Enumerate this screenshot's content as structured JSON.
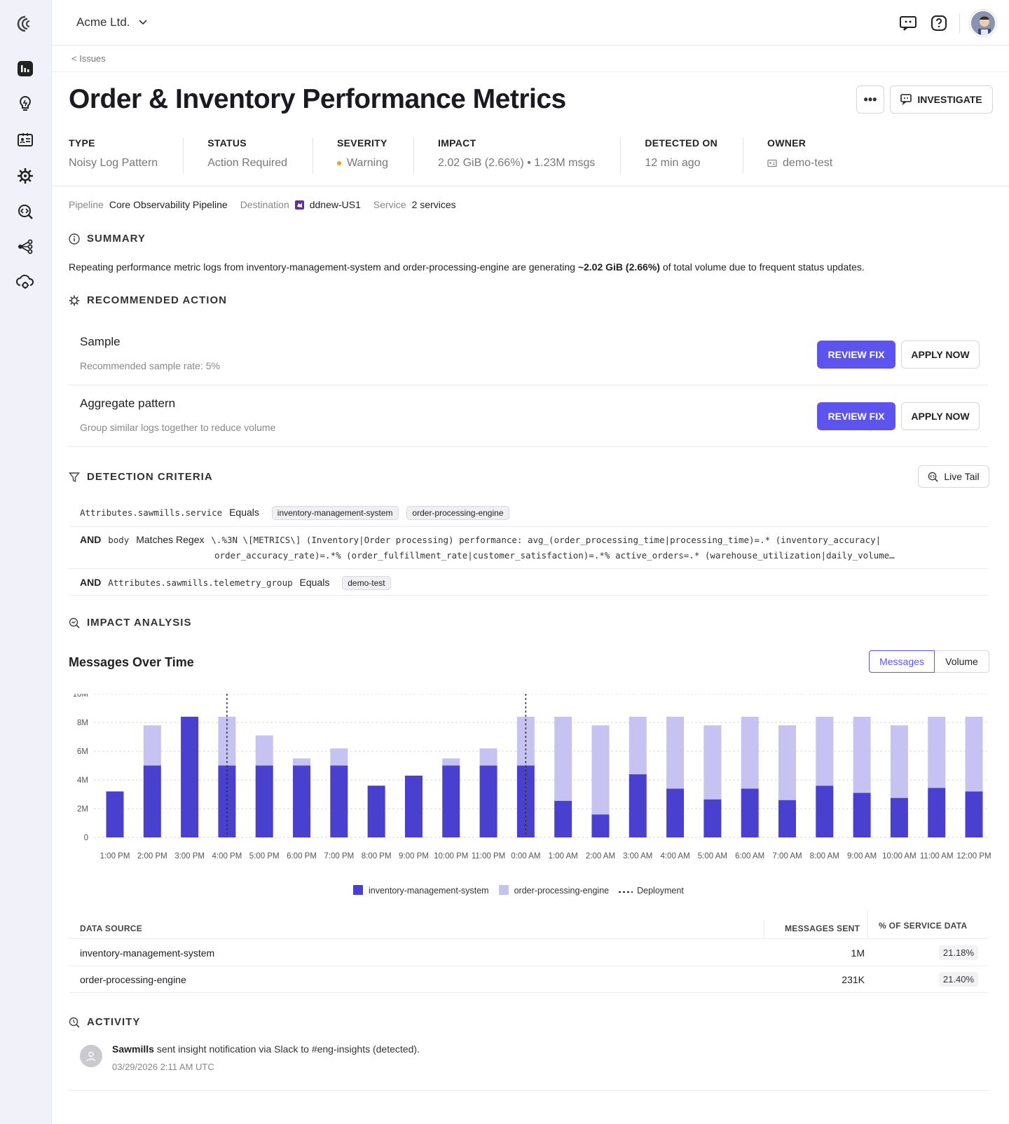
{
  "org": {
    "name": "Acme Ltd."
  },
  "breadcrumb": "< Issues",
  "title": "Order & Inventory Performance Metrics",
  "actions": {
    "investigate": "INVESTIGATE",
    "more": "•••"
  },
  "meta": [
    {
      "label": "TYPE",
      "value": "Noisy Log Pattern"
    },
    {
      "label": "STATUS",
      "value": "Action Required"
    },
    {
      "label": "SEVERITY",
      "value": "Warning"
    },
    {
      "label": "IMPACT",
      "value": "2.02 GiB (2.66%) • 1.23M msgs"
    },
    {
      "label": "DETECTED ON",
      "value": "12 min ago"
    },
    {
      "label": "OWNER",
      "value": "demo-test"
    }
  ],
  "pipeline": {
    "pipeline_label": "Pipeline",
    "pipeline_value": "Core Observability Pipeline",
    "destination_label": "Destination",
    "destination_value": "ddnew-US1",
    "service_label": "Service",
    "service_value": "2 services"
  },
  "summary": {
    "heading": "SUMMARY",
    "text_before": "Repeating performance metric logs from inventory-management-system and order-processing-engine are generating ",
    "text_bold": "~2.02 GiB (2.66%)",
    "text_after": " of total volume due to frequent status updates."
  },
  "recommended": {
    "heading": "RECOMMENDED ACTION",
    "items": [
      {
        "title": "Sample",
        "subtitle": "Recommended sample rate: 5%",
        "review": "REVIEW FIX",
        "apply": "APPLY NOW"
      },
      {
        "title": "Aggregate pattern",
        "subtitle": "Group similar logs together to reduce volume",
        "review": "REVIEW FIX",
        "apply": "APPLY NOW"
      }
    ]
  },
  "detection": {
    "heading": "DETECTION CRITERIA",
    "live_tail": "Live Tail",
    "row1": {
      "field": "Attributes.sawmills.service",
      "op": "Equals",
      "chips": [
        "inventory-management-system",
        "order-processing-engine"
      ]
    },
    "row2": {
      "and": "AND",
      "field": "body",
      "op": "Matches Regex",
      "line1": "\\.%3N \\[METRICS\\] (Inventory|Order processing) performance: avg_(order_processing_time|processing_time)=.* (inventory_accuracy|",
      "line2": "order_accuracy_rate)=.*% (order_fulfillment_rate|customer_satisfaction)=.*% active_orders=.* (warehouse_utilization|daily_volume…"
    },
    "row3": {
      "and": "AND",
      "field": "Attributes.sawmills.telemetry_group",
      "op": "Equals",
      "chip": "demo-test"
    }
  },
  "impact": {
    "heading": "IMPACT ANALYSIS",
    "chart_title": "Messages Over Time",
    "toggle": [
      "Messages",
      "Volume"
    ],
    "legend": [
      "inventory-management-system",
      "order-processing-engine",
      "Deployment"
    ]
  },
  "colors": {
    "primary": "#5d54f0",
    "series1": "#4a40d0",
    "series2": "#c6c2f2"
  },
  "chart_data": {
    "type": "bar",
    "stacked": true,
    "title": "Messages Over Time",
    "categories": [
      "1:00 PM",
      "2:00 PM",
      "3:00 PM",
      "4:00 PM",
      "5:00 PM",
      "6:00 PM",
      "7:00 PM",
      "8:00 PM",
      "9:00 PM",
      "10:00 PM",
      "11:00 PM",
      "0:00 AM",
      "1:00 AM",
      "2:00 AM",
      "3:00 AM",
      "4:00 AM",
      "5:00 AM",
      "6:00 AM",
      "7:00 AM",
      "8:00 AM",
      "9:00 AM",
      "10:00 AM",
      "11:00 AM",
      "12:00 PM"
    ],
    "series": [
      {
        "name": "inventory-management-system",
        "values": [
          3.2,
          5.0,
          8.4,
          5.0,
          5.0,
          5.0,
          5.0,
          3.6,
          4.3,
          5.0,
          5.0,
          5.0,
          2.55,
          1.6,
          4.4,
          3.4,
          2.65,
          3.4,
          2.6,
          3.6,
          3.1,
          2.75,
          3.45,
          3.2
        ]
      },
      {
        "name": "order-processing-engine",
        "values": [
          0,
          2.8,
          0,
          3.4,
          2.1,
          0.5,
          1.2,
          0,
          0,
          0.5,
          1.2,
          3.4,
          5.85,
          6.2,
          4.0,
          5.0,
          5.15,
          5.0,
          5.2,
          4.8,
          5.3,
          5.05,
          4.95,
          5.2
        ]
      }
    ],
    "deployments": [
      "4:00 PM",
      "0:00 AM"
    ],
    "yticks": [
      "0",
      "2M",
      "4M",
      "6M",
      "8M",
      "10M"
    ],
    "ylim": [
      0,
      10
    ],
    "legend_position": "bottom",
    "grid": true
  },
  "table": {
    "headers": [
      "DATA SOURCE",
      "MESSAGES SENT",
      "% OF SERVICE DATA"
    ],
    "rows": [
      {
        "source": "inventory-management-system",
        "messages": "1M",
        "pct": "21.18%"
      },
      {
        "source": "order-processing-engine",
        "messages": "231K",
        "pct": "21.40%"
      }
    ]
  },
  "activity": {
    "heading": "ACTIVITY",
    "items": [
      {
        "actor": "Sawmills",
        "text": " sent insight notification via Slack to #eng-insights (detected).",
        "time": "03/29/2026 2:11 AM UTC"
      }
    ]
  }
}
